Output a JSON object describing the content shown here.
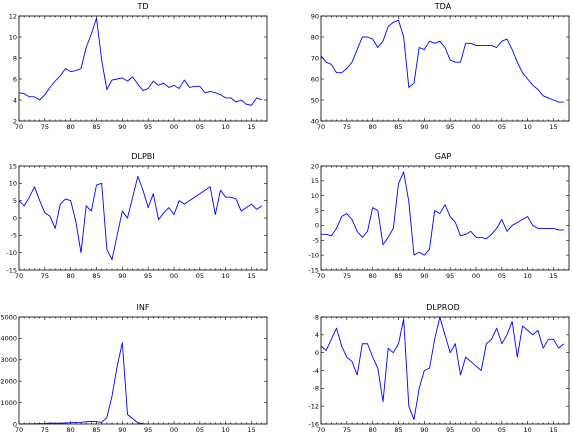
{
  "line_color": "#0000ff",
  "chart_data": [
    {
      "type": "line",
      "title": "TD",
      "x": [
        1970,
        1971,
        1972,
        1973,
        1974,
        1975,
        1976,
        1977,
        1978,
        1979,
        1980,
        1981,
        1982,
        1983,
        1984,
        1985,
        1986,
        1987,
        1988,
        1989,
        1990,
        1991,
        1992,
        1993,
        1994,
        1995,
        1996,
        1997,
        1998,
        1999,
        2000,
        2001,
        2002,
        2003,
        2004,
        2005,
        2006,
        2007,
        2008,
        2009,
        2010,
        2011,
        2012,
        2013,
        2014,
        2015,
        2016,
        2017
      ],
      "values": [
        4.7,
        4.6,
        4.3,
        4.3,
        4.0,
        4.5,
        5.2,
        5.8,
        6.3,
        7.0,
        6.7,
        6.8,
        7.0,
        9.0,
        10.3,
        11.8,
        7.8,
        5.0,
        5.9,
        6.0,
        6.1,
        5.8,
        6.2,
        5.5,
        4.9,
        5.1,
        5.8,
        5.4,
        5.6,
        5.2,
        5.4,
        5.1,
        5.9,
        5.2,
        5.3,
        5.3,
        4.7,
        4.8,
        4.7,
        4.5,
        4.2,
        4.2,
        3.8,
        4.0,
        3.6,
        3.5,
        4.2,
        4.0
      ],
      "ylim": [
        2,
        12
      ],
      "yticks": [
        "2",
        "4",
        "6",
        "8",
        "10",
        "12"
      ],
      "xlim": [
        1970,
        2018
      ],
      "xticks": [
        "70",
        "75",
        "80",
        "85",
        "90",
        "95",
        "00",
        "05",
        "10",
        "15"
      ]
    },
    {
      "type": "line",
      "title": "TDA",
      "x": [
        1970,
        1971,
        1972,
        1973,
        1974,
        1975,
        1976,
        1977,
        1978,
        1979,
        1980,
        1981,
        1982,
        1983,
        1984,
        1985,
        1986,
        1987,
        1988,
        1989,
        1990,
        1991,
        1992,
        1993,
        1994,
        1995,
        1996,
        1997,
        1998,
        1999,
        2000,
        2001,
        2002,
        2003,
        2004,
        2005,
        2006,
        2007,
        2008,
        2009,
        2010,
        2011,
        2012,
        2013,
        2014,
        2015,
        2016,
        2017
      ],
      "values": [
        71,
        68,
        67,
        63,
        63,
        65,
        68,
        74,
        80,
        80,
        79,
        75,
        78,
        85,
        87,
        88,
        80,
        56,
        58,
        75,
        74,
        78,
        77,
        78,
        75,
        69,
        68,
        68,
        77,
        77,
        76,
        76,
        76,
        76,
        75,
        78,
        79,
        74,
        68,
        63,
        60,
        57,
        55,
        52,
        51,
        50,
        49,
        49
      ],
      "ylim": [
        40,
        90
      ],
      "yticks": [
        "40",
        "50",
        "60",
        "70",
        "80",
        "90"
      ],
      "xlim": [
        1970,
        2018
      ],
      "xticks": [
        "70",
        "75",
        "80",
        "85",
        "90",
        "95",
        "00",
        "05",
        "10",
        "15"
      ]
    },
    {
      "type": "line",
      "title": "DLPBI",
      "x": [
        1970,
        1971,
        1972,
        1973,
        1974,
        1975,
        1976,
        1977,
        1978,
        1979,
        1980,
        1981,
        1982,
        1983,
        1984,
        1985,
        1986,
        1987,
        1988,
        1989,
        1990,
        1991,
        1992,
        1993,
        1994,
        1995,
        1996,
        1997,
        1998,
        1999,
        2000,
        2001,
        2002,
        2003,
        2004,
        2005,
        2006,
        2007,
        2008,
        2009,
        2010,
        2011,
        2012,
        2013,
        2014,
        2015,
        2016,
        2017
      ],
      "values": [
        5,
        3.5,
        6,
        9,
        5,
        1.5,
        0.5,
        -3,
        4,
        5.5,
        5,
        -1,
        -10,
        3.5,
        2,
        9.5,
        10,
        -9,
        -12,
        -5,
        2,
        0,
        6,
        12,
        8,
        3,
        7,
        -0.5,
        1.5,
        3,
        1,
        5,
        4,
        5,
        6,
        7,
        8,
        9,
        1,
        8,
        6,
        6,
        5.5,
        2,
        3,
        4,
        2.5,
        3.5
      ],
      "ylim": [
        -15,
        15
      ],
      "yticks": [
        "-15",
        "-10",
        "-5",
        "0",
        "5",
        "10",
        "15"
      ],
      "xlim": [
        1970,
        2018
      ],
      "xticks": [
        "70",
        "75",
        "80",
        "85",
        "90",
        "95",
        "00",
        "05",
        "10",
        "15"
      ]
    },
    {
      "type": "line",
      "title": "GAP",
      "x": [
        1970,
        1971,
        1972,
        1973,
        1974,
        1975,
        1976,
        1977,
        1978,
        1979,
        1980,
        1981,
        1982,
        1983,
        1984,
        1985,
        1986,
        1987,
        1988,
        1989,
        1990,
        1991,
        1992,
        1993,
        1994,
        1995,
        1996,
        1997,
        1998,
        1999,
        2000,
        2001,
        2002,
        2003,
        2004,
        2005,
        2006,
        2007,
        2008,
        2009,
        2010,
        2011,
        2012,
        2013,
        2014,
        2015,
        2016,
        2017
      ],
      "values": [
        -3,
        -3,
        -3.5,
        -1,
        3,
        4,
        2,
        -2,
        -4,
        -2,
        6,
        5,
        -6.5,
        -4,
        -1,
        14,
        18,
        8,
        -10,
        -9,
        -10,
        -8,
        5,
        4,
        7,
        3,
        1,
        -3.5,
        -3,
        -2,
        -4,
        -4,
        -4.5,
        -3,
        -1,
        2,
        -2,
        0,
        1,
        2,
        3,
        0,
        -1,
        -1,
        -1,
        -1,
        -1.5,
        -1.5
      ],
      "ylim": [
        -15,
        20
      ],
      "yticks": [
        "-15",
        "-10",
        "-5",
        "0",
        "5",
        "10",
        "15",
        "20"
      ],
      "xlim": [
        1970,
        2018
      ],
      "xticks": [
        "70",
        "75",
        "80",
        "85",
        "90",
        "95",
        "00",
        "05",
        "10",
        "15"
      ]
    },
    {
      "type": "line",
      "title": "INF",
      "x": [
        1970,
        1971,
        1972,
        1973,
        1974,
        1975,
        1976,
        1977,
        1978,
        1979,
        1980,
        1981,
        1982,
        1983,
        1984,
        1985,
        1986,
        1987,
        1988,
        1989,
        1990,
        1991,
        1992,
        1993,
        1994,
        1995,
        1996,
        1997,
        1998,
        1999,
        2000,
        2001,
        2002,
        2003,
        2004,
        2005,
        2006,
        2007,
        2008,
        2009,
        2010,
        2011,
        2012,
        2013,
        2014,
        2015,
        2016,
        2017
      ],
      "values": [
        5,
        10,
        8,
        14,
        20,
        24,
        45,
        38,
        40,
        50,
        60,
        75,
        80,
        100,
        120,
        110,
        80,
        300,
        1300,
        2700,
        3800,
        450,
        250,
        60,
        12,
        5,
        3,
        2,
        2,
        2,
        2,
        2,
        2,
        2,
        2,
        2,
        2,
        2,
        2,
        2,
        2,
        2,
        2,
        2,
        2,
        2,
        2,
        2
      ],
      "ylim": [
        0,
        5000
      ],
      "yticks": [
        "0",
        "1000",
        "2000",
        "3000",
        "4000",
        "5000"
      ],
      "yticks_display": [
        "0",
        "1000",
        "2000",
        "3000",
        "4000",
        "5000"
      ],
      "xlim": [
        1970,
        2018
      ],
      "xticks": [
        "70",
        "75",
        "80",
        "85",
        "90",
        "95",
        "00",
        "05",
        "10",
        "15"
      ]
    },
    {
      "type": "line",
      "title": "DLPROD",
      "x": [
        1970,
        1971,
        1972,
        1973,
        1974,
        1975,
        1976,
        1977,
        1978,
        1979,
        1980,
        1981,
        1982,
        1983,
        1984,
        1985,
        1986,
        1987,
        1988,
        1989,
        1990,
        1991,
        1992,
        1993,
        1994,
        1995,
        1996,
        1997,
        1998,
        1999,
        2000,
        2001,
        2002,
        2003,
        2004,
        2005,
        2006,
        2007,
        2008,
        2009,
        2010,
        2011,
        2012,
        2013,
        2014,
        2015,
        2016,
        2017
      ],
      "values": [
        1.5,
        0.5,
        3,
        5.5,
        1.5,
        -1,
        -2,
        -5,
        2,
        2,
        -1,
        -3.5,
        -11,
        1,
        0,
        2,
        7.5,
        -12,
        -15,
        -8,
        -4,
        -3.5,
        3,
        8,
        4,
        0,
        2,
        -5,
        -1,
        -2,
        -3,
        -4,
        2,
        3,
        5.5,
        2,
        4,
        7,
        -1,
        6,
        5,
        4,
        5,
        1,
        3,
        3,
        1,
        2
      ],
      "ylim": [
        -16,
        8
      ],
      "yticks": [
        "-16",
        "-12",
        "-8",
        "-4",
        "0",
        "4",
        "8"
      ],
      "xlim": [
        1970,
        2018
      ],
      "xticks": [
        "70",
        "75",
        "80",
        "85",
        "90",
        "95",
        "00",
        "05",
        "10",
        "15"
      ]
    }
  ]
}
